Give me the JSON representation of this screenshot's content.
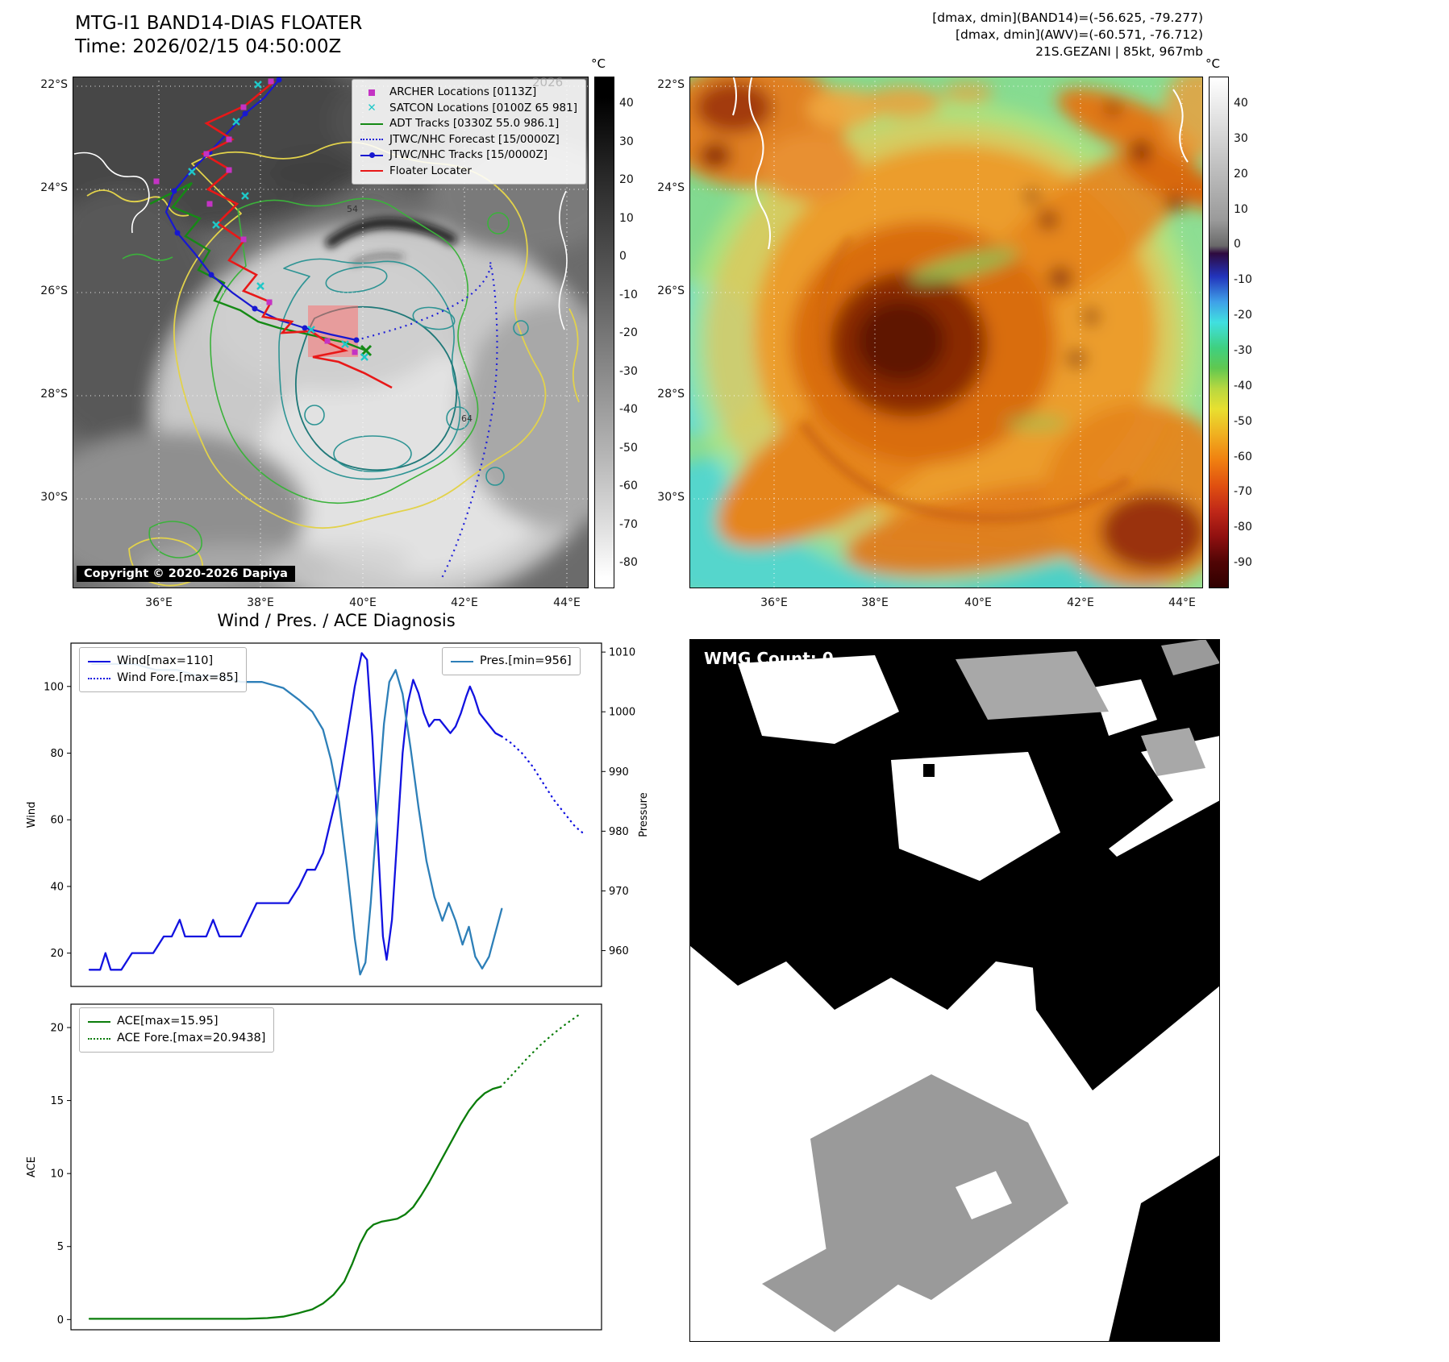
{
  "panel_tl": {
    "title": "MTG-I1 BAND14-DIAS FLOATER",
    "subtitle": "Time: 2026/02/15 04:50:00Z",
    "watermark": "2026",
    "copyright": "Copyright © 2020-2026 Dapiya",
    "legend": [
      {
        "label": "ARCHER Locations [0113Z]",
        "marker": "magenta-square"
      },
      {
        "label": "SATCON Locations [0100Z 65 981]",
        "marker": "cyan-x"
      },
      {
        "label": "ADT Tracks [0330Z 55.0 986.1]",
        "marker": "green-line"
      },
      {
        "label": "JTWC/NHC Forecast [15/0000Z]",
        "marker": "blue-dotted-line"
      },
      {
        "label": "JTWC/NHC Tracks [15/0000Z]",
        "marker": "blue-line-dot"
      },
      {
        "label": "Floater Locater",
        "marker": "red-line"
      }
    ],
    "contour_labels": [
      "54",
      "64"
    ],
    "colorbar": {
      "unit": "°C",
      "ticks": [
        40,
        30,
        20,
        10,
        0,
        -10,
        -20,
        -30,
        -40,
        -50,
        -60,
        -70,
        -80
      ]
    }
  },
  "panel_tr": {
    "header_lines": [
      "[dmax, dmin](BAND14)=(-56.625, -79.277)",
      "[dmax, dmin](AWV)=(-60.571, -76.712)",
      "21S.GEZANI | 85kt, 967mb"
    ],
    "colorbar": {
      "unit": "°C",
      "ticks": [
        40,
        30,
        20,
        10,
        0,
        -10,
        -20,
        -30,
        -40,
        -50,
        -60,
        -70,
        -80,
        -90
      ]
    }
  },
  "maps": {
    "lat_ticks": [
      "22°S",
      "24°S",
      "26°S",
      "28°S",
      "30°S"
    ],
    "lon_ticks": [
      "36°E",
      "38°E",
      "40°E",
      "42°E",
      "44°E"
    ]
  },
  "panel_bl": {
    "title": "Wind / Pres. / ACE Diagnosis"
  },
  "panel_br": {
    "wmg_count": "WMG Count: 0"
  },
  "colors": {
    "wind": "#1212e0",
    "pressure": "#2d7fb8",
    "ace": "#0a7d0a",
    "track_red": "#e81818",
    "track_green": "#158a15",
    "track_blue": "#1818d0",
    "forecast_blue": "#2222d8",
    "archer_magenta": "#c433c4",
    "satcon_cyan": "#1fc8c8",
    "floater_box": "#ff6a6a"
  },
  "chart_data": [
    {
      "type": "line",
      "ylabel_left": "Wind",
      "ylabel_right": "Pressure",
      "ylim_left": [
        10,
        113
      ],
      "yticks_left": [
        20,
        40,
        60,
        80,
        100
      ],
      "ylim_right": [
        954,
        1011.5
      ],
      "yticks_right": [
        960,
        970,
        980,
        990,
        1000,
        1010
      ],
      "series": [
        {
          "name": "Wind[max=110]",
          "axis": "left",
          "color": "#1212e0",
          "dash": "solid",
          "points": [
            [
              0.035,
              15
            ],
            [
              0.055,
              15
            ],
            [
              0.065,
              20
            ],
            [
              0.075,
              15
            ],
            [
              0.095,
              15
            ],
            [
              0.115,
              20
            ],
            [
              0.135,
              20
            ],
            [
              0.155,
              20
            ],
            [
              0.175,
              25
            ],
            [
              0.19,
              25
            ],
            [
              0.205,
              30
            ],
            [
              0.215,
              25
            ],
            [
              0.235,
              25
            ],
            [
              0.255,
              25
            ],
            [
              0.268,
              30
            ],
            [
              0.28,
              25
            ],
            [
              0.3,
              25
            ],
            [
              0.32,
              25
            ],
            [
              0.335,
              30
            ],
            [
              0.35,
              35
            ],
            [
              0.37,
              35
            ],
            [
              0.39,
              35
            ],
            [
              0.41,
              35
            ],
            [
              0.43,
              40
            ],
            [
              0.445,
              45
            ],
            [
              0.46,
              45
            ],
            [
              0.475,
              50
            ],
            [
              0.49,
              60
            ],
            [
              0.505,
              70
            ],
            [
              0.52,
              85
            ],
            [
              0.535,
              100
            ],
            [
              0.548,
              110
            ],
            [
              0.558,
              108
            ],
            [
              0.568,
              85
            ],
            [
              0.578,
              55
            ],
            [
              0.588,
              25
            ],
            [
              0.595,
              18
            ],
            [
              0.605,
              30
            ],
            [
              0.615,
              55
            ],
            [
              0.625,
              80
            ],
            [
              0.635,
              95
            ],
            [
              0.645,
              102
            ],
            [
              0.655,
              98
            ],
            [
              0.665,
              92
            ],
            [
              0.675,
              88
            ],
            [
              0.685,
              90
            ],
            [
              0.695,
              90
            ],
            [
              0.705,
              88
            ],
            [
              0.715,
              86
            ],
            [
              0.725,
              88
            ],
            [
              0.735,
              92
            ],
            [
              0.745,
              97
            ],
            [
              0.752,
              100
            ],
            [
              0.76,
              97
            ],
            [
              0.77,
              92
            ],
            [
              0.78,
              90
            ],
            [
              0.79,
              88
            ],
            [
              0.8,
              86
            ],
            [
              0.812,
              85
            ]
          ]
        },
        {
          "name": "Wind Fore.[max=85]",
          "axis": "left",
          "color": "#1212e0",
          "dash": "dotted",
          "points": [
            [
              0.812,
              85
            ],
            [
              0.83,
              83
            ],
            [
              0.85,
              80
            ],
            [
              0.87,
              76
            ],
            [
              0.89,
              71
            ],
            [
              0.91,
              66
            ],
            [
              0.93,
              62
            ],
            [
              0.95,
              58
            ],
            [
              0.965,
              56
            ]
          ]
        },
        {
          "name": "Pres.[min=956]",
          "axis": "right",
          "color": "#2d7fb8",
          "dash": "solid",
          "points": [
            [
              0.04,
              1008
            ],
            [
              0.08,
              1008
            ],
            [
              0.12,
              1008
            ],
            [
              0.16,
              1007
            ],
            [
              0.2,
              1007
            ],
            [
              0.24,
              1006
            ],
            [
              0.28,
              1006
            ],
            [
              0.32,
              1005
            ],
            [
              0.36,
              1005
            ],
            [
              0.4,
              1004
            ],
            [
              0.43,
              1002
            ],
            [
              0.455,
              1000
            ],
            [
              0.475,
              997
            ],
            [
              0.49,
              992
            ],
            [
              0.505,
              985
            ],
            [
              0.52,
              974
            ],
            [
              0.535,
              962
            ],
            [
              0.545,
              956
            ],
            [
              0.555,
              958
            ],
            [
              0.565,
              968
            ],
            [
              0.578,
              984
            ],
            [
              0.59,
              998
            ],
            [
              0.6,
              1005
            ],
            [
              0.612,
              1007
            ],
            [
              0.625,
              1003
            ],
            [
              0.64,
              994
            ],
            [
              0.655,
              984
            ],
            [
              0.67,
              975
            ],
            [
              0.685,
              969
            ],
            [
              0.7,
              965
            ],
            [
              0.712,
              968
            ],
            [
              0.725,
              965
            ],
            [
              0.738,
              961
            ],
            [
              0.75,
              964
            ],
            [
              0.762,
              959
            ],
            [
              0.775,
              957
            ],
            [
              0.788,
              959
            ],
            [
              0.8,
              963
            ],
            [
              0.812,
              967
            ]
          ]
        }
      ]
    },
    {
      "type": "line",
      "ylabel_left": "ACE",
      "ylim_left": [
        -0.7,
        21.6
      ],
      "yticks_left": [
        0,
        5,
        10,
        15,
        20
      ],
      "series": [
        {
          "name": "ACE[max=15.95]",
          "axis": "left",
          "color": "#0a7d0a",
          "dash": "solid",
          "points": [
            [
              0.035,
              0.05
            ],
            [
              0.08,
              0.05
            ],
            [
              0.13,
              0.05
            ],
            [
              0.18,
              0.05
            ],
            [
              0.23,
              0.05
            ],
            [
              0.28,
              0.05
            ],
            [
              0.33,
              0.05
            ],
            [
              0.37,
              0.1
            ],
            [
              0.4,
              0.2
            ],
            [
              0.43,
              0.45
            ],
            [
              0.455,
              0.7
            ],
            [
              0.475,
              1.1
            ],
            [
              0.495,
              1.7
            ],
            [
              0.515,
              2.6
            ],
            [
              0.53,
              3.8
            ],
            [
              0.545,
              5.2
            ],
            [
              0.558,
              6.1
            ],
            [
              0.57,
              6.5
            ],
            [
              0.585,
              6.7
            ],
            [
              0.6,
              6.8
            ],
            [
              0.615,
              6.9
            ],
            [
              0.63,
              7.2
            ],
            [
              0.645,
              7.7
            ],
            [
              0.66,
              8.5
            ],
            [
              0.675,
              9.4
            ],
            [
              0.69,
              10.4
            ],
            [
              0.705,
              11.4
            ],
            [
              0.72,
              12.4
            ],
            [
              0.735,
              13.4
            ],
            [
              0.75,
              14.3
            ],
            [
              0.765,
              15.0
            ],
            [
              0.78,
              15.5
            ],
            [
              0.795,
              15.8
            ],
            [
              0.81,
              15.95
            ]
          ]
        },
        {
          "name": "ACE Fore.[max=20.9438]",
          "axis": "left",
          "color": "#0a7d0a",
          "dash": "dotted",
          "points": [
            [
              0.81,
              15.95
            ],
            [
              0.835,
              16.9
            ],
            [
              0.86,
              17.9
            ],
            [
              0.885,
              18.8
            ],
            [
              0.91,
              19.6
            ],
            [
              0.935,
              20.3
            ],
            [
              0.96,
              20.94
            ]
          ]
        }
      ]
    }
  ]
}
